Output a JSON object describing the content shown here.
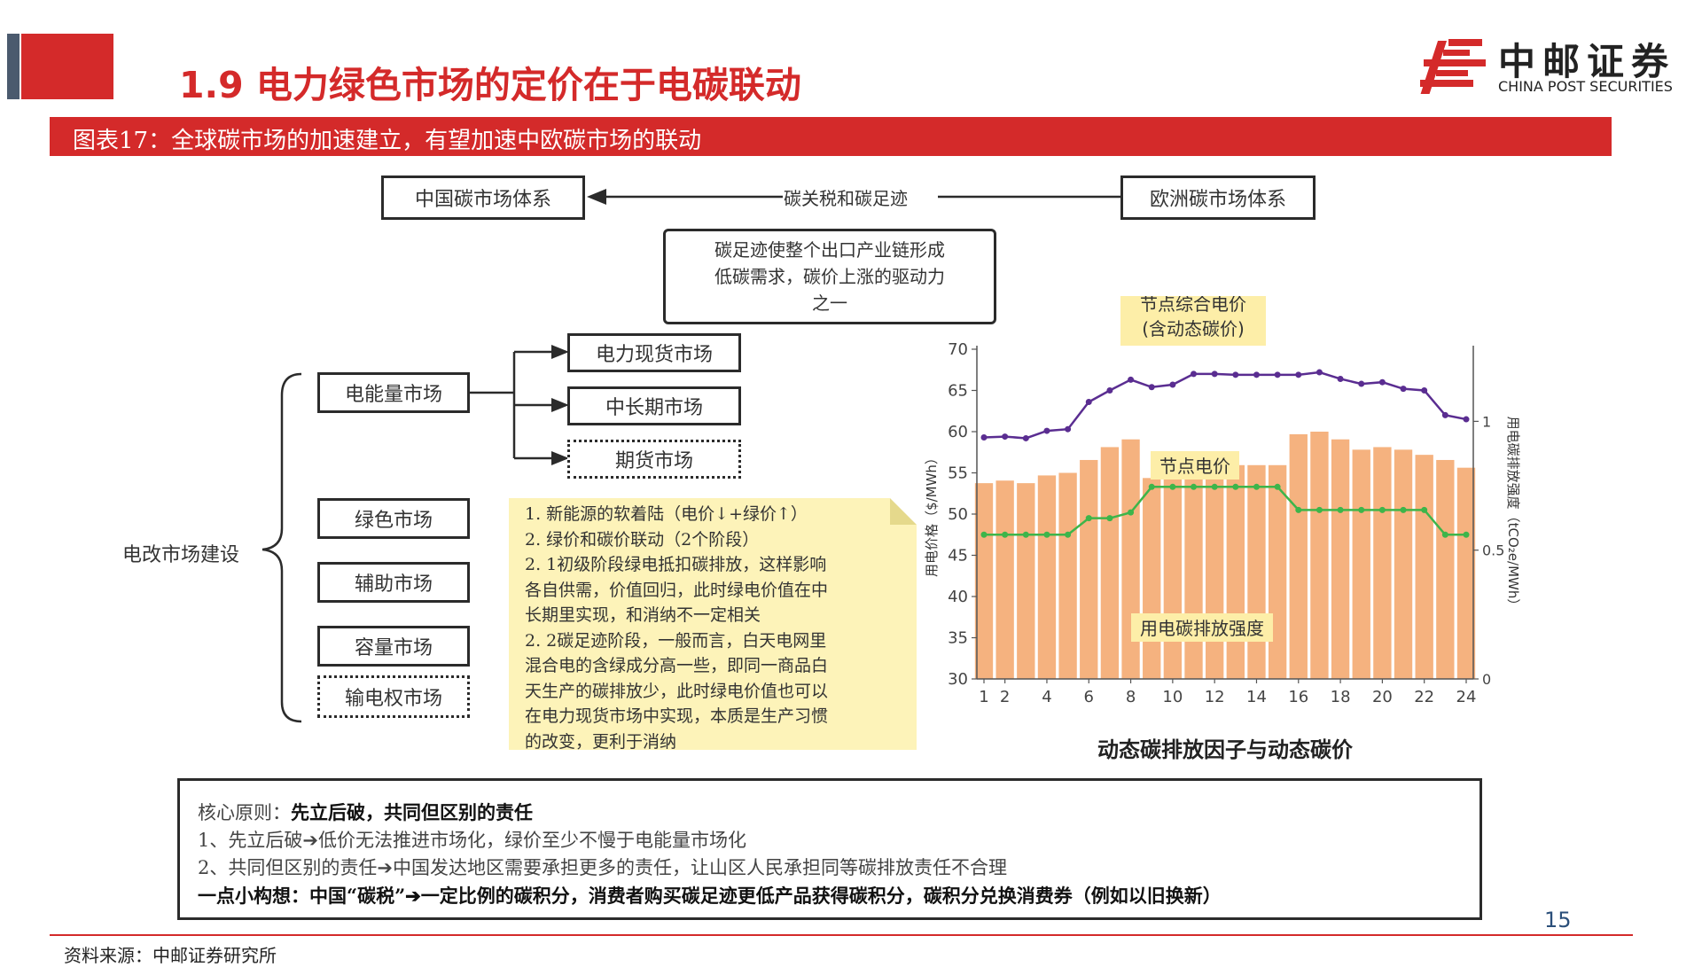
{
  "header": {
    "title": "1.9 电力绿色市场的定价在于电碳联动",
    "logo_cn": "中邮证券",
    "logo_en": "CHINA POST SECURITIES",
    "figure_caption": "图表17：全球碳市场的加速建立，有望加速中欧碳市场的联动"
  },
  "diagram": {
    "china_box": "中国碳市场体系",
    "eu_box": "欧洲碳市场体系",
    "link_label": "碳关税和碳足迹",
    "note_lines": [
      "碳足迹使整个出口产业链形成",
      "低碳需求，碳价上涨的驱动力",
      "之一"
    ],
    "root_label": "电改市场建设",
    "energy_market": "电能量市场",
    "spot_market": "电力现货市场",
    "mid_long_market": "中长期市场",
    "futures_market": "期货市场",
    "green_market": "绿色市场",
    "ancillary_market": "辅助市场",
    "capacity_market": "容量市场",
    "transmission_market": "输电权市场"
  },
  "sticky_note": {
    "lines": [
      "1. 新能源的软着陆（电价↓+绿价↑）",
      "2. 绿价和碳价联动（2个阶段）",
      "2. 1初级阶段绿电抵扣碳排放，这样影响",
      "各自供需，价值回归，此时绿电价值在中",
      "长期里实现，和消纳不一定相关",
      "2. 2碳足迹阶段，一般而言，白天电网里",
      "混合电的含绿成分高一些，即同一商品白",
      "天生产的碳排放少，此时绿电价值也可以",
      "在电力现货市场中实现，本质是生产习惯",
      "的改变，更利于消纳"
    ]
  },
  "principle": {
    "line1_prefix": "核心原则：",
    "line1_bold": "先立后破，共同但区别的责任",
    "line2": "1、先立后破➔低价无法推进市场化，绿价至少不慢于电能量市场化",
    "line3": "2、共同但区别的责任➔中国发达地区需要承担更多的责任，让山区人民承担同等碳排放责任不合理",
    "line4": "一点小构想：中国“碳税”➔一定比例的碳积分，消费者购买碳足迹更低产品获得碳积分，碳积分兑换消费券（例如以旧换新）"
  },
  "page_number": "15",
  "source": "资料来源：中邮证券研究所",
  "chart_data": {
    "type": "bar",
    "title": "动态碳排放因子与动态碳价",
    "ylabel": "用电价格（$/MWh）",
    "y2label": "用电碳排放强度（tCO₂e/MWh）",
    "ylim": [
      30,
      70
    ],
    "y2lim": [
      0,
      1.28
    ],
    "x_ticks": [
      "1",
      "2",
      "4",
      "6",
      "8",
      "10",
      "12",
      "14",
      "16",
      "18",
      "20",
      "22",
      "24"
    ],
    "yticks": [
      "30",
      "35",
      "40",
      "45",
      "50",
      "55",
      "60",
      "65",
      "70"
    ],
    "y2ticks": [
      "0",
      "0.5",
      "1"
    ],
    "hours": [
      1,
      2,
      3,
      4,
      5,
      6,
      7,
      8,
      9,
      10,
      11,
      12,
      13,
      14,
      15,
      16,
      17,
      18,
      19,
      20,
      21,
      22,
      23,
      24
    ],
    "series": [
      {
        "name": "节点综合电价（含动态碳价）",
        "type": "line",
        "color": "#5a2d91",
        "values": [
          59.3,
          59.4,
          59.2,
          60.1,
          60.3,
          63.6,
          65.0,
          66.3,
          65.4,
          65.7,
          67.0,
          67.0,
          66.9,
          66.9,
          66.9,
          66.9,
          67.2,
          66.4,
          65.8,
          66.0,
          65.2,
          65.0,
          62.0,
          61.5
        ]
      },
      {
        "name": "节点电价",
        "type": "line",
        "color": "#3db54a",
        "values": [
          47.5,
          47.5,
          47.5,
          47.5,
          47.5,
          49.5,
          49.5,
          50.2,
          53.3,
          53.3,
          53.3,
          53.3,
          53.3,
          53.3,
          53.3,
          50.5,
          50.5,
          50.5,
          50.5,
          50.5,
          50.5,
          50.5,
          47.5,
          47.5
        ]
      },
      {
        "name": "用电碳排放强度",
        "type": "bar",
        "axis": "right",
        "color": "#f5b27f",
        "values": [
          0.76,
          0.77,
          0.76,
          0.79,
          0.8,
          0.85,
          0.9,
          0.93,
          0.78,
          0.8,
          0.83,
          0.83,
          0.83,
          0.83,
          0.83,
          0.95,
          0.96,
          0.93,
          0.89,
          0.9,
          0.89,
          0.87,
          0.85,
          0.82
        ]
      }
    ],
    "annotations": [
      "节点综合电价",
      "(含动态碳价)",
      "节点电价",
      "用电碳排放强度"
    ],
    "colors": {
      "label_bg": "#fdeea8",
      "axis": "#555555"
    }
  }
}
